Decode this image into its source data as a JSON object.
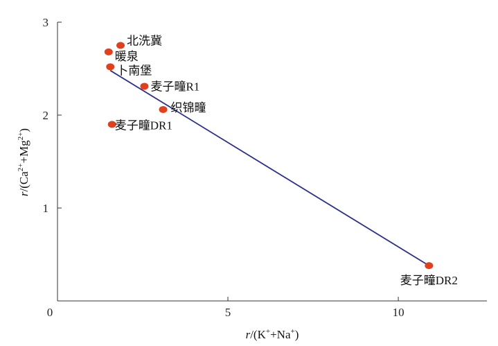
{
  "chart_data": {
    "type": "scatter",
    "title": "",
    "xlabel": {
      "var": "r",
      "text": "/(K+Na)",
      "parts": [
        "/(K",
        "+",
        "+Na",
        "+",
        ")"
      ]
    },
    "ylabel": {
      "var": "r",
      "text": "/(Ca2++Mg2+)",
      "parts": [
        "/(Ca",
        "2+",
        "+Mg",
        "2+",
        ")"
      ]
    },
    "xlim": [
      0,
      12.6
    ],
    "ylim": [
      0,
      3
    ],
    "xticks": [
      0,
      5,
      10
    ],
    "yticks": [
      1,
      2,
      3
    ],
    "xtick_labels": [
      "0",
      "5",
      "10"
    ],
    "ytick_labels": [
      "1",
      "2",
      "3"
    ],
    "grid": false,
    "point_color": "#e0401e",
    "line_color": "#2b2f8c",
    "points": [
      {
        "label": "北洗冀",
        "x": 1.85,
        "y": 2.75
      },
      {
        "label": "暖泉",
        "x": 1.5,
        "y": 2.68
      },
      {
        "label": "卜南堡",
        "x": 1.55,
        "y": 2.52
      },
      {
        "label": "麦子疃R1",
        "x": 2.55,
        "y": 2.31
      },
      {
        "label": "织锦疃",
        "x": 3.1,
        "y": 2.06
      },
      {
        "label": "麦子疃DR1",
        "x": 1.6,
        "y": 1.9
      },
      {
        "label": "麦子疃DR2",
        "x": 10.9,
        "y": 0.38
      }
    ],
    "fit_line": {
      "x": [
        1.55,
        10.9
      ],
      "y": [
        2.48,
        0.38
      ]
    }
  }
}
